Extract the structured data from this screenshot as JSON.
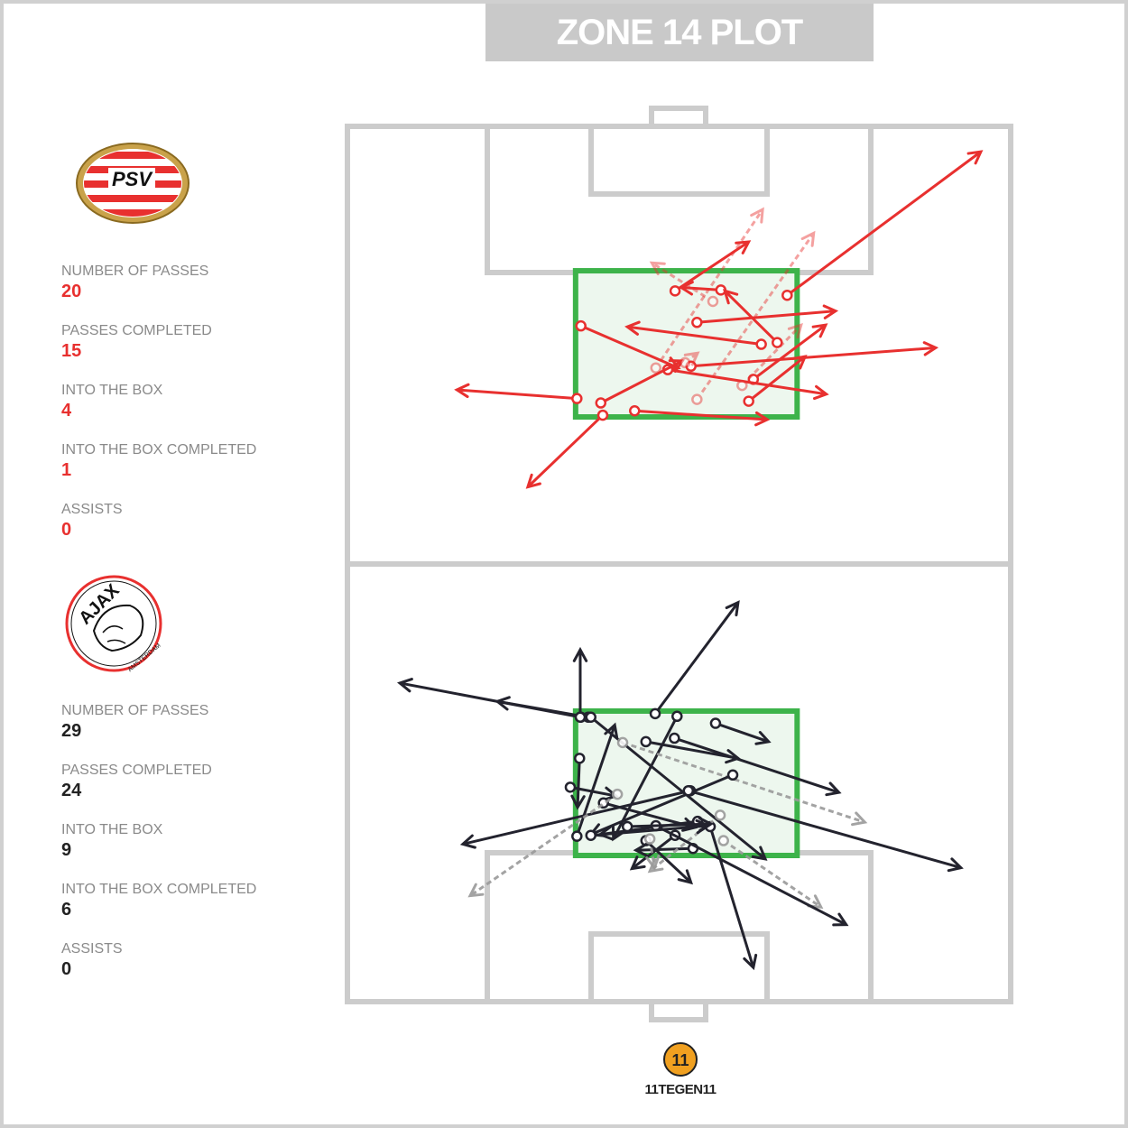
{
  "title": "ZONE 14 PLOT",
  "teams": [
    {
      "name": "PSV",
      "logo_text": "PSV",
      "color": "#e8302f",
      "stats": [
        {
          "label": "NUMBER OF PASSES",
          "value": "20"
        },
        {
          "label": "PASSES COMPLETED",
          "value": "15"
        },
        {
          "label": "INTO THE BOX",
          "value": "4"
        },
        {
          "label": "INTO THE BOX COMPLETED",
          "value": "1"
        },
        {
          "label": "ASSISTS",
          "value": "0"
        }
      ]
    },
    {
      "name": "Ajax",
      "logo_text": "AJAX AMSTERDAM",
      "color": "#23232e",
      "stats": [
        {
          "label": "NUMBER OF PASSES",
          "value": "29"
        },
        {
          "label": "PASSES COMPLETED",
          "value": "24"
        },
        {
          "label": "INTO THE BOX",
          "value": "9"
        },
        {
          "label": "INTO THE BOX COMPLETED",
          "value": "6"
        },
        {
          "label": "ASSISTS",
          "value": "0"
        }
      ]
    }
  ],
  "brand": "11TEGEN11",
  "colors": {
    "zone": "#3db34a",
    "zone_fill": "#edf7ee",
    "pitch_lines": "#cccccc",
    "psv": "#e8302f",
    "ajax": "#23232e",
    "ajax_incomplete": "#9a9a9a"
  },
  "chart_data": {
    "type": "pass-map",
    "pitch_units": "0-100 (x across width from left, y along length from top)",
    "zone14": [
      {
        "team": "PSV",
        "x": [
          34.4,
          67.8
        ],
        "y": [
          16.5,
          33.2
        ]
      },
      {
        "team": "Ajax",
        "x": [
          34.4,
          67.8
        ],
        "y": [
          66.8,
          83.3
        ]
      }
    ],
    "passes": {
      "PSV": [
        {
          "from": [
            66.3,
            19.3
          ],
          "to": [
            95.5,
            2.9
          ],
          "completed": true
        },
        {
          "from": [
            49.4,
            18.8
          ],
          "to": [
            60.5,
            13.2
          ],
          "completed": true
        },
        {
          "from": [
            56.3,
            18.7
          ],
          "to": [
            50.3,
            18.4
          ],
          "completed": true
        },
        {
          "from": [
            55.1,
            20.0
          ],
          "to": [
            45.9,
            15.6
          ],
          "completed": false
        },
        {
          "from": [
            52.7,
            22.4
          ],
          "to": [
            73.6,
            21.1
          ],
          "completed": true
        },
        {
          "from": [
            35.2,
            22.8
          ],
          "to": [
            49.9,
            27.6
          ],
          "completed": true
        },
        {
          "from": [
            62.4,
            24.9
          ],
          "to": [
            42.2,
            22.9
          ],
          "completed": true
        },
        {
          "from": [
            64.8,
            24.7
          ],
          "to": [
            56.9,
            18.8
          ],
          "completed": true
        },
        {
          "from": [
            51.8,
            27.4
          ],
          "to": [
            88.7,
            25.3
          ],
          "completed": true
        },
        {
          "from": [
            46.5,
            27.6
          ],
          "to": [
            62.6,
            9.5
          ],
          "completed": false
        },
        {
          "from": [
            52.7,
            31.2
          ],
          "to": [
            70.3,
            12.2
          ],
          "completed": false
        },
        {
          "from": [
            61.2,
            28.9
          ],
          "to": [
            72.1,
            22.7
          ],
          "completed": true
        },
        {
          "from": [
            48.3,
            27.8
          ],
          "to": [
            72.2,
            30.6
          ],
          "completed": true
        },
        {
          "from": [
            60.5,
            31.4
          ],
          "to": [
            69.0,
            26.3
          ],
          "completed": true
        },
        {
          "from": [
            34.6,
            31.1
          ],
          "to": [
            16.5,
            30.1
          ],
          "completed": true
        },
        {
          "from": [
            38.2,
            31.6
          ],
          "to": [
            50.5,
            26.8
          ],
          "completed": true
        },
        {
          "from": [
            38.5,
            33.0
          ],
          "to": [
            27.2,
            41.2
          ],
          "completed": true
        },
        {
          "from": [
            43.3,
            32.5
          ],
          "to": [
            63.3,
            33.5
          ],
          "completed": true
        },
        {
          "from": [
            59.5,
            29.6
          ],
          "to": [
            68.4,
            22.7
          ],
          "completed": false
        },
        {
          "from": [
            50.9,
            27.0
          ],
          "to": [
            52.8,
            25.9
          ],
          "completed": false
        }
      ],
      "Ajax": [
        {
          "from": [
            35.2,
            67.5
          ],
          "to": [
            7.9,
            63.6
          ],
          "completed": true
        },
        {
          "from": [
            36.3,
            67.5
          ],
          "to": [
            22.6,
            65.7
          ],
          "completed": true
        },
        {
          "from": [
            35.1,
            67.5
          ],
          "to": [
            35.1,
            59.8
          ],
          "completed": true
        },
        {
          "from": [
            35.0,
            72.2
          ],
          "to": [
            34.7,
            77.8
          ],
          "completed": true
        },
        {
          "from": [
            36.7,
            67.5
          ],
          "to": [
            63.0,
            83.7
          ],
          "completed": true
        },
        {
          "from": [
            34.6,
            81.1
          ],
          "to": [
            40.3,
            68.4
          ],
          "completed": true
        },
        {
          "from": [
            46.4,
            67.1
          ],
          "to": [
            58.9,
            54.4
          ],
          "completed": true
        },
        {
          "from": [
            49.7,
            67.4
          ],
          "to": [
            40.1,
            81.4
          ],
          "completed": true
        },
        {
          "from": [
            55.5,
            68.2
          ],
          "to": [
            63.5,
            70.3
          ],
          "completed": true
        },
        {
          "from": [
            45.0,
            70.3
          ],
          "to": [
            58.9,
            72.2
          ],
          "completed": true
        },
        {
          "from": [
            49.3,
            69.9
          ],
          "to": [
            74.1,
            76.1
          ],
          "completed": true
        },
        {
          "from": [
            41.5,
            70.4
          ],
          "to": [
            78.0,
            79.5
          ],
          "completed": false
        },
        {
          "from": [
            58.1,
            74.1
          ],
          "to": [
            36.7,
            80.9
          ],
          "completed": true
        },
        {
          "from": [
            51.7,
            75.9
          ],
          "to": [
            17.4,
            82.0
          ],
          "completed": true
        },
        {
          "from": [
            51.4,
            75.9
          ],
          "to": [
            92.5,
            84.7
          ],
          "completed": true
        },
        {
          "from": [
            33.6,
            75.5
          ],
          "to": [
            40.5,
            76.5
          ],
          "completed": true
        },
        {
          "from": [
            38.6,
            77.3
          ],
          "to": [
            52.4,
            80.1
          ],
          "completed": true
        },
        {
          "from": [
            40.7,
            76.3
          ],
          "to": [
            18.5,
            87.9
          ],
          "completed": false
        },
        {
          "from": [
            52.8,
            79.4
          ],
          "to": [
            38.1,
            80.9
          ],
          "completed": true
        },
        {
          "from": [
            54.7,
            80.0
          ],
          "to": [
            61.2,
            96.1
          ],
          "completed": true
        },
        {
          "from": [
            49.4,
            81.0
          ],
          "to": [
            42.9,
            84.8
          ],
          "completed": true
        },
        {
          "from": [
            45.0,
            81.6
          ],
          "to": [
            51.8,
            86.4
          ],
          "completed": true
        },
        {
          "from": [
            52.1,
            82.5
          ],
          "to": [
            43.5,
            82.7
          ],
          "completed": true
        },
        {
          "from": [
            56.2,
            78.7
          ],
          "to": [
            45.6,
            85.1
          ],
          "completed": false
        },
        {
          "from": [
            56.7,
            81.6
          ],
          "to": [
            71.4,
            89.2
          ],
          "completed": false
        },
        {
          "from": [
            46.5,
            79.9
          ],
          "to": [
            75.2,
            91.2
          ],
          "completed": true
        },
        {
          "from": [
            42.2,
            80.0
          ],
          "to": [
            54.8,
            79.7
          ],
          "completed": true
        },
        {
          "from": [
            36.7,
            81.0
          ],
          "to": [
            54.4,
            79.9
          ],
          "completed": true
        },
        {
          "from": [
            45.6,
            81.4
          ],
          "to": [
            46.3,
            84.7
          ],
          "completed": false
        }
      ]
    }
  }
}
